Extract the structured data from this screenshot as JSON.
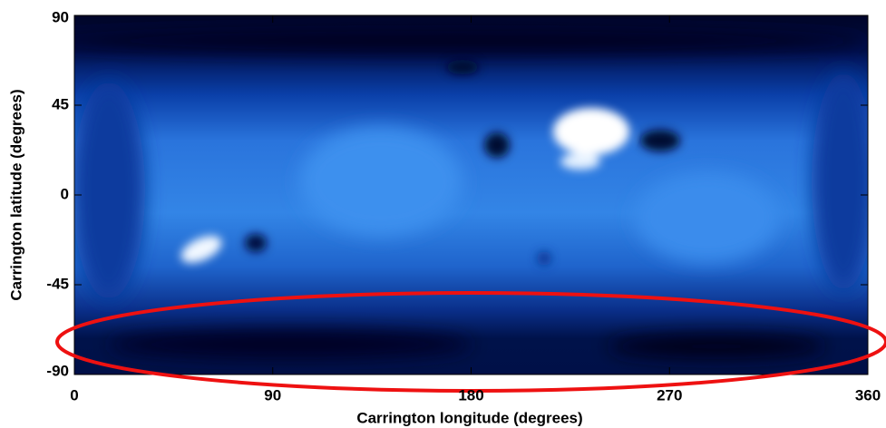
{
  "chart_data": {
    "type": "heatmap",
    "x_label": "Carrington longitude (degrees)",
    "y_label": "Carrington latitude (degrees)",
    "xlim": [
      0,
      360
    ],
    "xticks": [
      0,
      90,
      180,
      270,
      360
    ],
    "ylim": [
      -90,
      90
    ],
    "yticks": [
      90,
      45,
      0,
      -45,
      -90
    ],
    "grid": false
  }
}
